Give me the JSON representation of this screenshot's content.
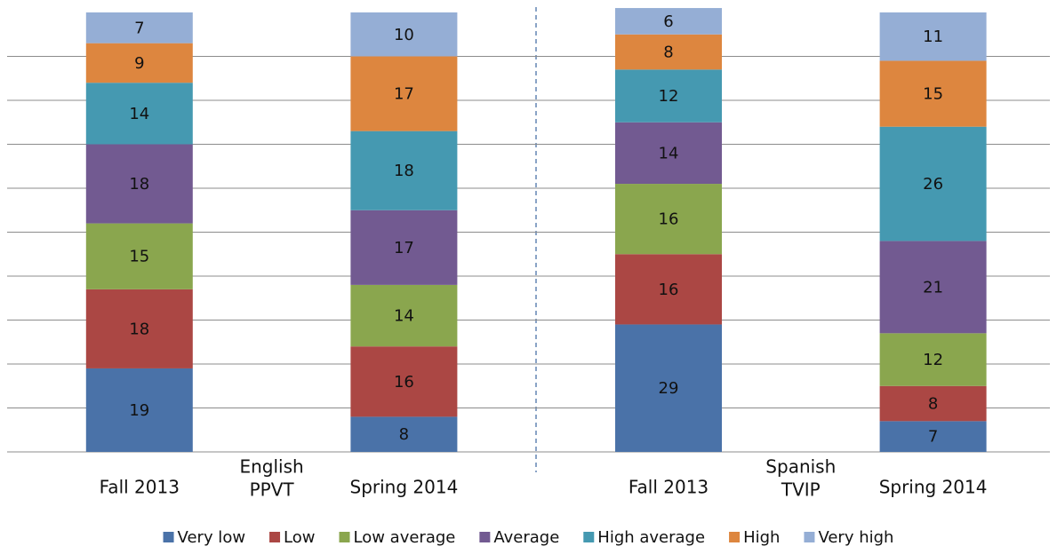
{
  "chart_data": {
    "type": "stacked_bar",
    "categories": [
      "Fall 2013",
      "Spring 2014",
      "Fall 2013",
      "Spring 2014"
    ],
    "groups": [
      [
        "English",
        "PPVT"
      ],
      [
        "Spanish",
        "TVIP"
      ]
    ],
    "series": [
      {
        "name": "Very low",
        "color": "#4a72a8",
        "values": [
          19,
          8,
          29,
          7
        ]
      },
      {
        "name": "Low",
        "color": "#ab4744",
        "values": [
          18,
          16,
          16,
          8
        ]
      },
      {
        "name": "Low average",
        "color": "#8aa64e",
        "values": [
          15,
          14,
          16,
          12
        ]
      },
      {
        "name": "Average",
        "color": "#725a91",
        "values": [
          18,
          17,
          14,
          21
        ]
      },
      {
        "name": "High average",
        "color": "#4599b1",
        "values": [
          14,
          18,
          12,
          26
        ]
      },
      {
        "name": "High",
        "color": "#dd863f",
        "values": [
          9,
          17,
          8,
          15
        ]
      },
      {
        "name": "Very high",
        "color": "#95aed5",
        "values": [
          7,
          10,
          6,
          11
        ]
      }
    ],
    "ylim": [
      0,
      100
    ],
    "yticks": [
      0,
      10,
      20,
      30,
      40,
      50,
      60,
      70,
      80,
      90
    ],
    "grid": true,
    "legend": "bottom"
  }
}
